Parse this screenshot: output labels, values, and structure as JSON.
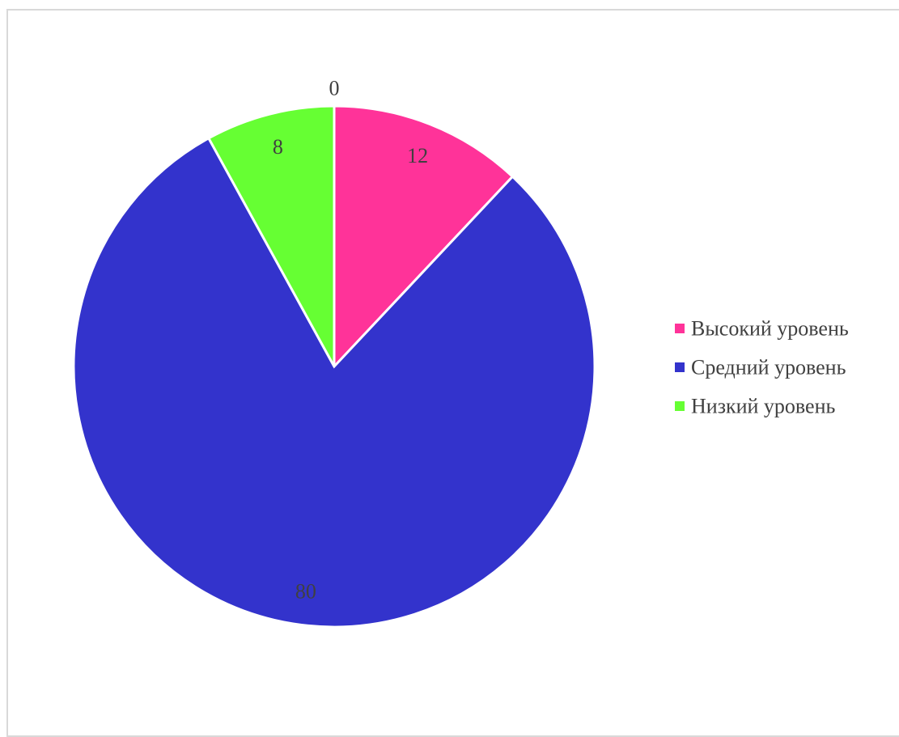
{
  "chart_data": {
    "type": "pie",
    "categories": [
      "Высокий уровень",
      "Средний уровень",
      "Низкий уровень"
    ],
    "values": [
      12,
      80,
      8
    ],
    "extra_data_labels": [
      "0"
    ],
    "colors": [
      "#ff3399",
      "#3333cc",
      "#66ff33"
    ],
    "legend_position": "right",
    "title": ""
  }
}
